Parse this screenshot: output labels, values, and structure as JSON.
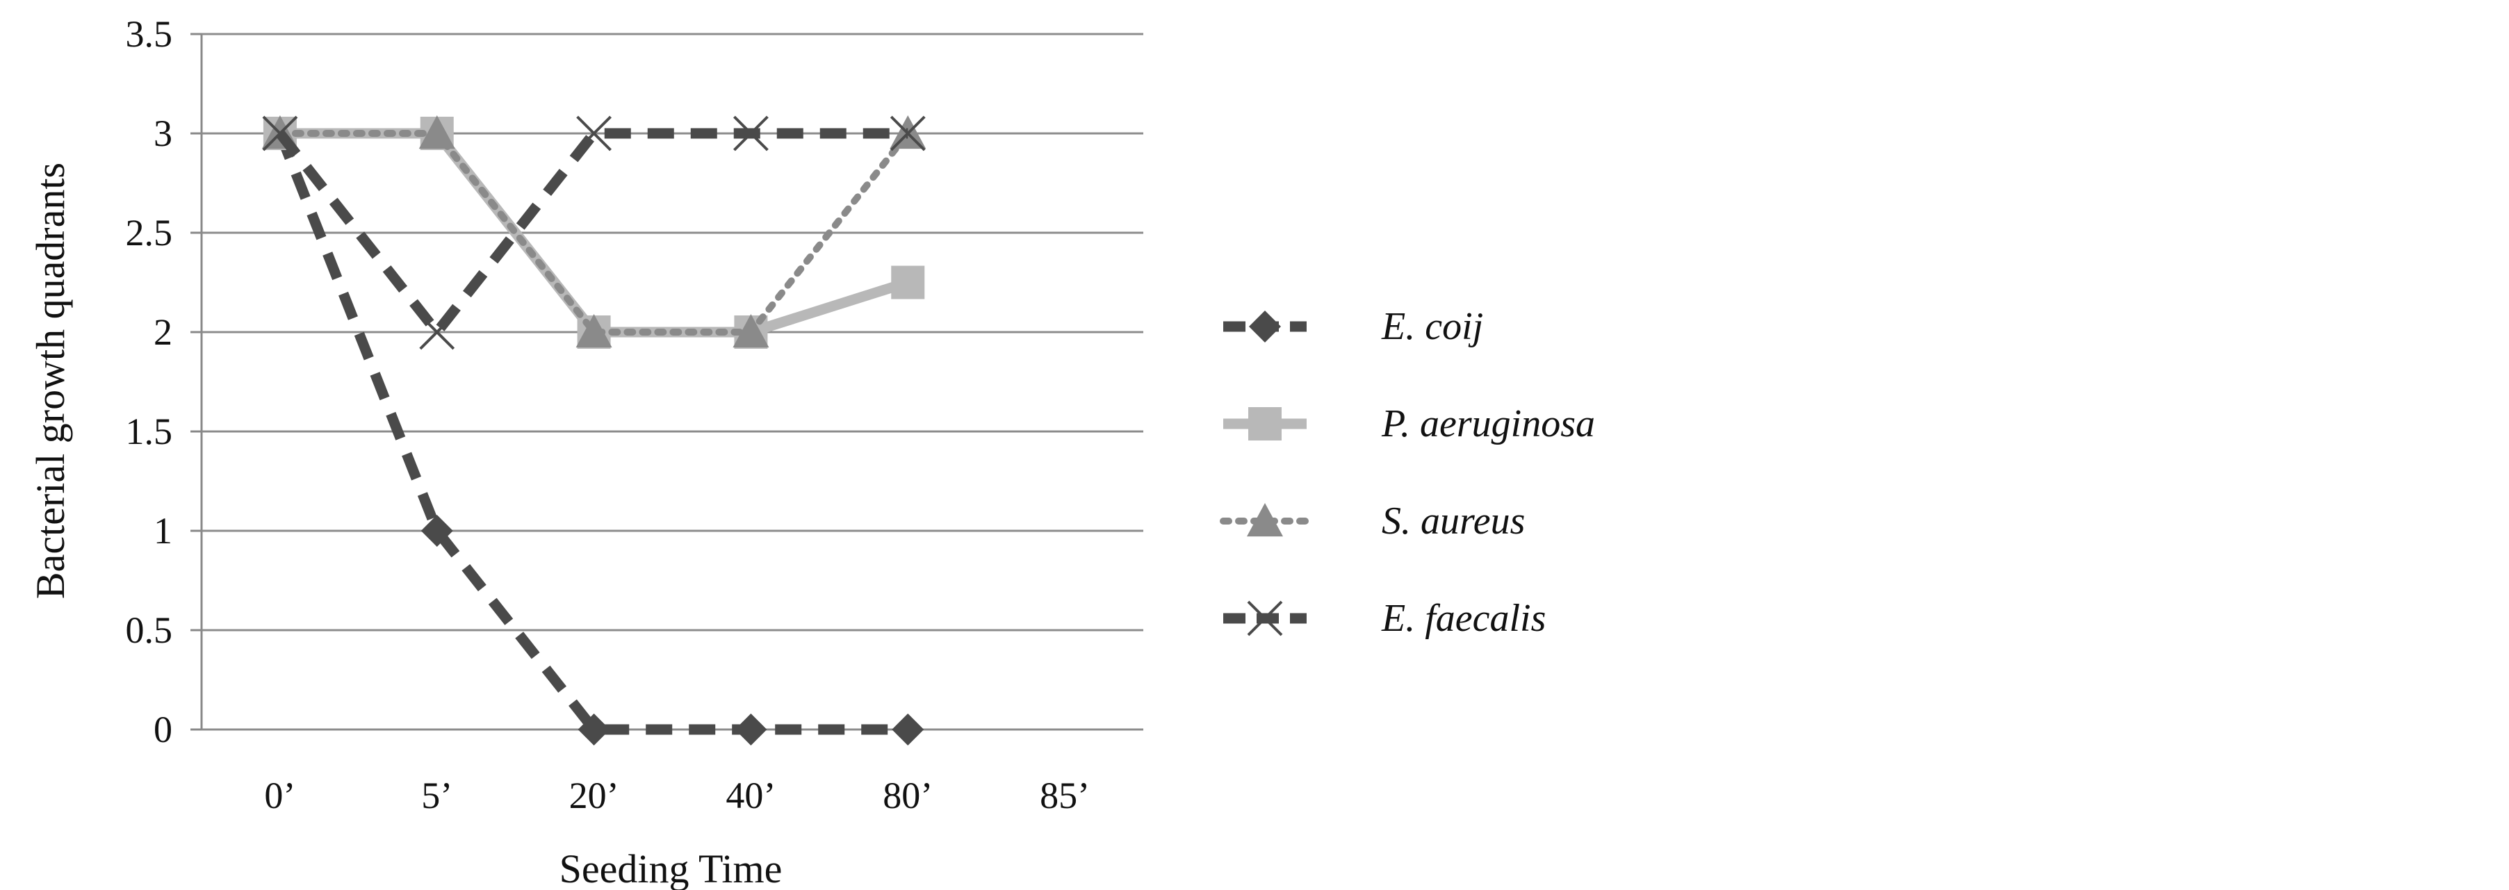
{
  "chart_data": {
    "type": "line",
    "title": "",
    "xlabel": "Seeding Time",
    "ylabel": "Bacterial growth quadrants",
    "categories": [
      "0’",
      "5’",
      "20’",
      "40’",
      "80’",
      "85’"
    ],
    "ylim": [
      0,
      3.5
    ],
    "yticks": [
      0,
      0.5,
      1,
      1.5,
      2,
      2.5,
      3,
      3.5
    ],
    "ytick_labels": [
      "0",
      "0.5",
      "1",
      "1.5",
      "2",
      "2.5",
      "3",
      "3.5"
    ],
    "grid": "horizontal",
    "legend_position": "right",
    "series": [
      {
        "name": "E. coij",
        "values": [
          3,
          1,
          0,
          0,
          0,
          null
        ],
        "color": "#4a4a4a",
        "dash": "dashed",
        "marker": "diamond"
      },
      {
        "name": "P. aeruginosa",
        "values": [
          3,
          3,
          2,
          2,
          2.25,
          null
        ],
        "color": "#b8b8b8",
        "dash": "solid",
        "marker": "square"
      },
      {
        "name": "S. aureus",
        "values": [
          3,
          3,
          2,
          2,
          3,
          null
        ],
        "color": "#8a8a8a",
        "dash": "dotted",
        "marker": "triangle"
      },
      {
        "name": "E. faecalis",
        "values": [
          3,
          2,
          3,
          3,
          3,
          null
        ],
        "color": "#4a4a4a",
        "dash": "dashed",
        "marker": "x"
      }
    ]
  }
}
